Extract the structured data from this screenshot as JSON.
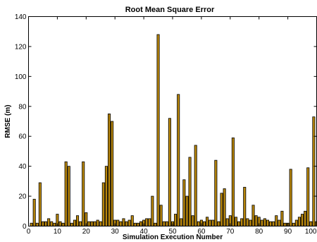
{
  "chart_data": {
    "type": "bar",
    "title": "Root Mean Square Error",
    "xlabel": "Simulation Execution Number",
    "ylabel": "RMSE (m)",
    "xlim": [
      0,
      100
    ],
    "ylim": [
      0,
      140
    ],
    "xticks": [
      0,
      10,
      20,
      30,
      40,
      50,
      60,
      70,
      80,
      90,
      100
    ],
    "yticks": [
      0,
      20,
      40,
      60,
      80,
      100,
      120,
      140
    ],
    "grid": false,
    "bar_color": "#b8860b",
    "x": [
      1,
      2,
      3,
      4,
      5,
      6,
      7,
      8,
      9,
      10,
      11,
      12,
      13,
      14,
      15,
      16,
      17,
      18,
      19,
      20,
      21,
      22,
      23,
      24,
      25,
      26,
      27,
      28,
      29,
      30,
      31,
      32,
      33,
      34,
      35,
      36,
      37,
      38,
      39,
      40,
      41,
      42,
      43,
      44,
      45,
      46,
      47,
      48,
      49,
      50,
      51,
      52,
      53,
      54,
      55,
      56,
      57,
      58,
      59,
      60,
      61,
      62,
      63,
      64,
      65,
      66,
      67,
      68,
      69,
      70,
      71,
      72,
      73,
      74,
      75,
      76,
      77,
      78,
      79,
      80,
      81,
      82,
      83,
      84,
      85,
      86,
      87,
      88,
      89,
      90,
      91,
      92,
      93,
      94,
      95,
      96,
      97,
      98,
      99,
      100
    ],
    "values": [
      2,
      18,
      2,
      29,
      3,
      3,
      5,
      3,
      2,
      8,
      3,
      2,
      43,
      40,
      2,
      4,
      7,
      3,
      43,
      9,
      3,
      3,
      3,
      4,
      3,
      29,
      40,
      75,
      70,
      4,
      4,
      3,
      5,
      3,
      4,
      7,
      2,
      2,
      3,
      4,
      5,
      5,
      20,
      2,
      128,
      14,
      3,
      3,
      72,
      3,
      8,
      88,
      5,
      31,
      20,
      46,
      7,
      54,
      3,
      4,
      3,
      6,
      4,
      4,
      44,
      3,
      22,
      25,
      5,
      7,
      59,
      6,
      3,
      5,
      26,
      5,
      4,
      14,
      7,
      6,
      4,
      5,
      4,
      3,
      3,
      7,
      4,
      10,
      2,
      2,
      38,
      2,
      4,
      6,
      8,
      10,
      39,
      3,
      73,
      3
    ]
  }
}
